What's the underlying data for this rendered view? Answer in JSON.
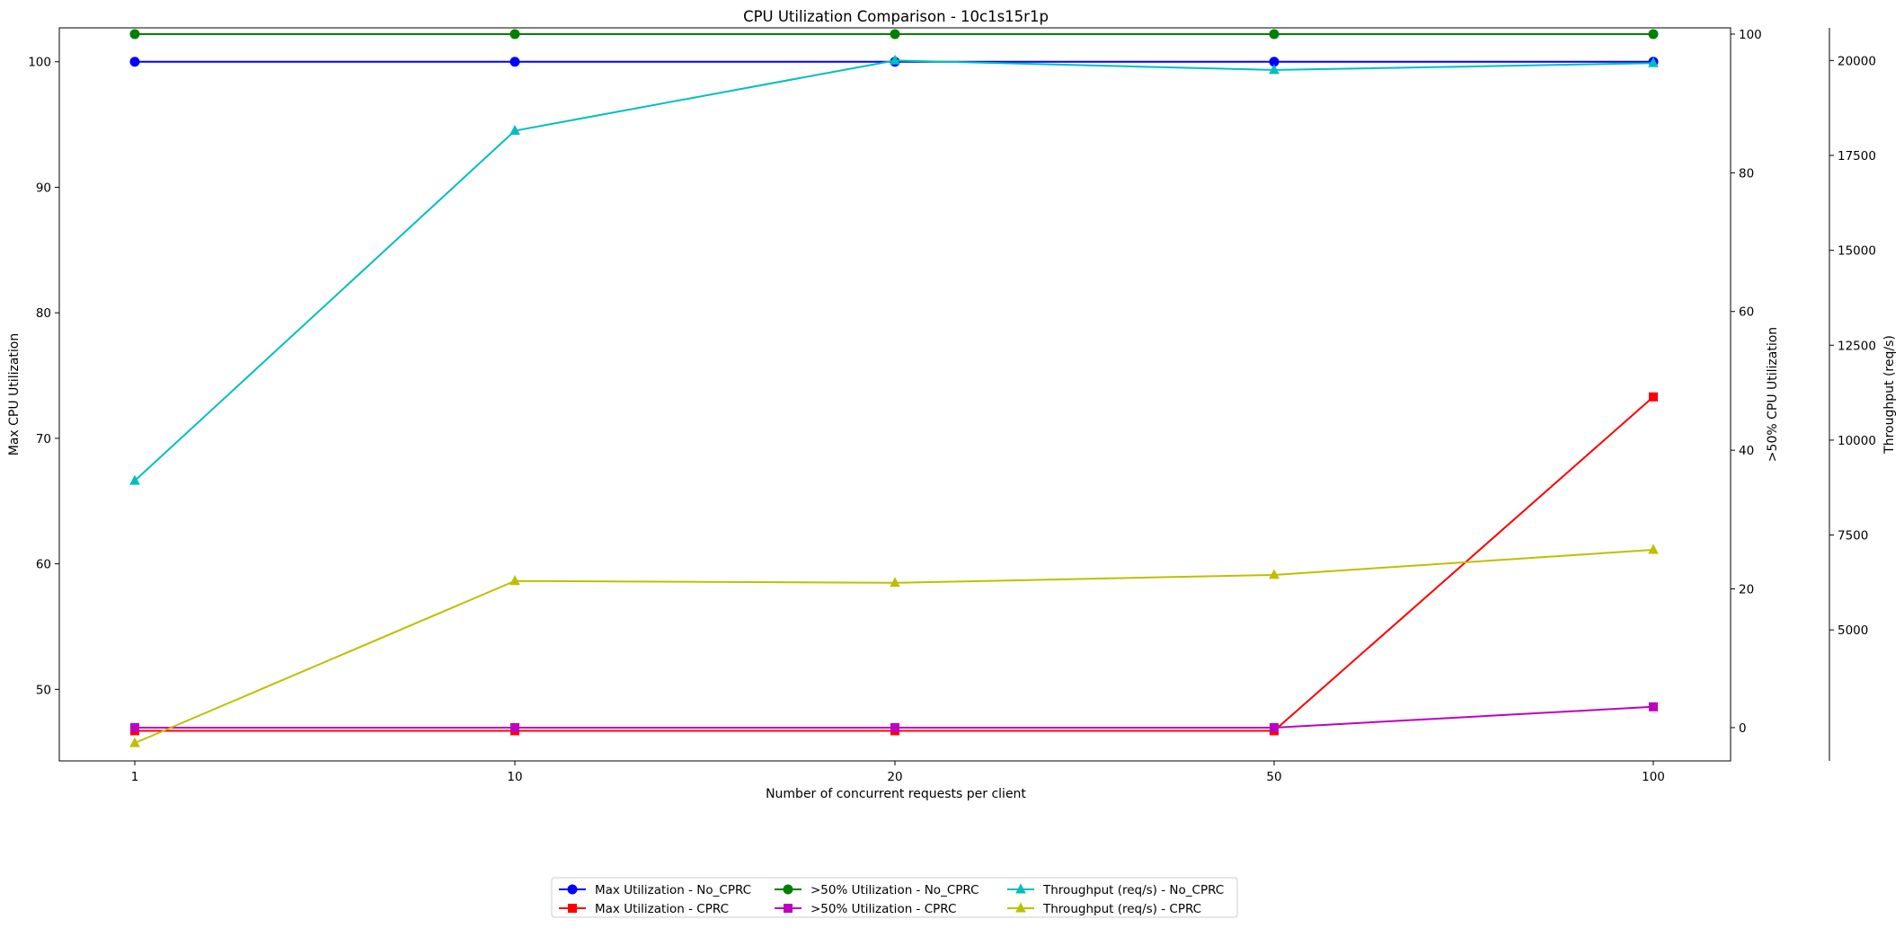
{
  "chart_data": {
    "type": "line",
    "title": "CPU Utilization Comparison - 10c1s15r1p",
    "xlabel": "Number of concurrent requests per client",
    "categories": [
      "1",
      "10",
      "20",
      "50",
      "100"
    ],
    "axes": {
      "left": {
        "label": "Max CPU Utilization",
        "ylim": [
          44.3,
          102.7
        ],
        "ticks": [
          50,
          60,
          70,
          80,
          90,
          100
        ]
      },
      "right1": {
        "label": ">50% CPU Utilization",
        "ylim": [
          -4.8,
          100.9
        ],
        "ticks": [
          0,
          20,
          40,
          60,
          80,
          100
        ]
      },
      "right2": {
        "label": "Throughput (req/s)",
        "ylim": [
          1550,
          20860
        ],
        "ticks": [
          5000,
          7500,
          10000,
          12500,
          15000,
          17500,
          20000
        ]
      }
    },
    "series": [
      {
        "name": "Max Utilization - No_CPRC",
        "axis": "left",
        "color": "#0000ff",
        "marker": "circle",
        "values": [
          100,
          100,
          100,
          100,
          100
        ]
      },
      {
        "name": "Max Utilization - CPRC",
        "axis": "left",
        "color": "#ff0000",
        "marker": "square",
        "values": [
          46.7,
          46.7,
          46.7,
          46.7,
          73.3
        ]
      },
      {
        "name": ">50% Utilization - No_CPRC",
        "axis": "right1",
        "color": "#008000",
        "marker": "circle",
        "values": [
          100,
          100,
          100,
          100,
          100
        ]
      },
      {
        "name": ">50% Utilization - CPRC",
        "axis": "right1",
        "color": "#bf00bf",
        "marker": "square",
        "values": [
          0,
          0,
          0,
          0,
          3
        ]
      },
      {
        "name": "Throughput (req/s) - No_CPRC",
        "axis": "right2",
        "color": "#00bfbf",
        "marker": "triangle",
        "values": [
          8930,
          18150,
          20000,
          19750,
          19930
        ]
      },
      {
        "name": "Throughput (req/s) - CPRC",
        "axis": "right2",
        "color": "#bfbf00",
        "marker": "triangle",
        "values": [
          2020,
          6290,
          6240,
          6450,
          7110
        ]
      }
    ],
    "legend": {
      "position": "bottom-center",
      "columns": 3
    },
    "grid": false
  }
}
